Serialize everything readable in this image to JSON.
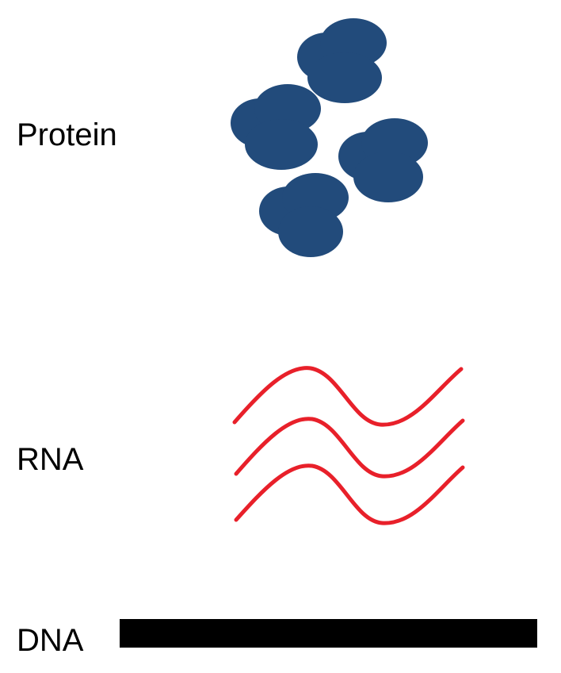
{
  "labels": {
    "protein": "Protein",
    "rna": "RNA",
    "dna": "DNA"
  },
  "colors": {
    "protein": "#224B7B",
    "rna": "#E8202A",
    "dna": "#000000",
    "background": "#FFFFFF"
  },
  "icons": {
    "protein": "protein-cluster-icon",
    "rna": "rna-strand-icon",
    "dna": "dna-bar-icon"
  },
  "counts": {
    "protein_molecules": 4,
    "rna_strands": 3
  }
}
